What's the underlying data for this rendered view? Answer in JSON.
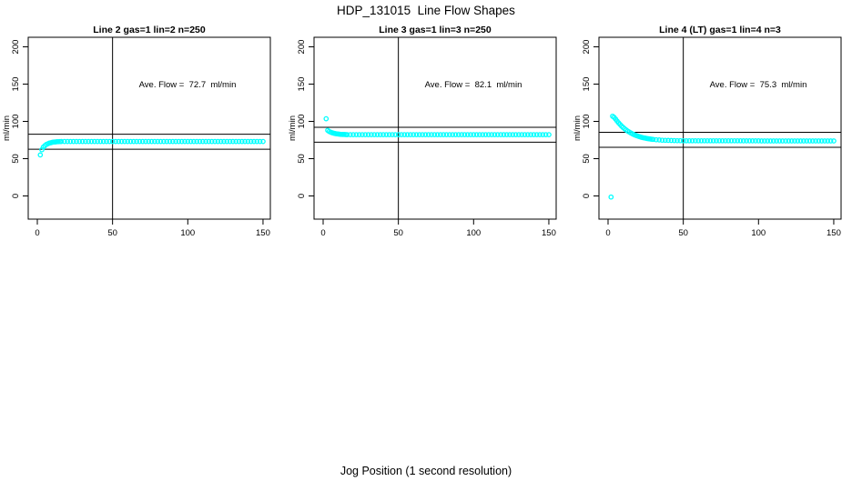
{
  "page": {
    "title": "HDP_131015  Line Flow Shapes",
    "x_axis_label": "Jog Position (1 second resolution)"
  },
  "colors": {
    "points": "#00ffff",
    "axis": "#000000",
    "background": "#ffffff"
  },
  "chart_data": [
    {
      "type": "scatter",
      "title": "Line 2 gas=1 lin=2 n=250",
      "annotation": "Ave. Flow =  72.7  ml/min",
      "ave_flow_ml_min": 72.7,
      "ylabel": "ml/min",
      "xlim": [
        0,
        150
      ],
      "ylim": [
        0,
        200
      ],
      "x_ticks": [
        0,
        50,
        100,
        150
      ],
      "y_ticks": [
        0,
        50,
        100,
        150,
        200
      ],
      "vline_x": 50,
      "hlines": [
        82.7,
        62.7
      ],
      "annotation_at": [
        100,
        150
      ],
      "points": [
        [
          2,
          55
        ],
        [
          3,
          62
        ],
        [
          4,
          65.5
        ],
        [
          5,
          67.5
        ],
        [
          6,
          69
        ],
        [
          7,
          70
        ],
        [
          8,
          70.8
        ],
        [
          9,
          71.4
        ],
        [
          10,
          71.9
        ],
        [
          11,
          72.3
        ],
        [
          12,
          72.5
        ],
        [
          13,
          72.7
        ],
        [
          14,
          72.8
        ],
        [
          15,
          72.9
        ],
        [
          16,
          73
        ],
        [
          18,
          73
        ],
        [
          20,
          73
        ],
        [
          22,
          73
        ],
        [
          24,
          73
        ],
        [
          26,
          73
        ],
        [
          28,
          73
        ],
        [
          30,
          73
        ],
        [
          32,
          73
        ],
        [
          34,
          73
        ],
        [
          36,
          73
        ],
        [
          38,
          73
        ],
        [
          40,
          73
        ],
        [
          42,
          73
        ],
        [
          44,
          73
        ],
        [
          46,
          73
        ],
        [
          48,
          73
        ],
        [
          50,
          73
        ],
        [
          52,
          73
        ],
        [
          54,
          73
        ],
        [
          56,
          73
        ],
        [
          58,
          73
        ],
        [
          60,
          73
        ],
        [
          62,
          73
        ],
        [
          64,
          73
        ],
        [
          66,
          73
        ],
        [
          68,
          73
        ],
        [
          70,
          73
        ],
        [
          72,
          73
        ],
        [
          74,
          73
        ],
        [
          76,
          73
        ],
        [
          78,
          73
        ],
        [
          80,
          73
        ],
        [
          82,
          73
        ],
        [
          84,
          73
        ],
        [
          86,
          73
        ],
        [
          88,
          73
        ],
        [
          90,
          73
        ],
        [
          92,
          73
        ],
        [
          94,
          73
        ],
        [
          96,
          73
        ],
        [
          98,
          73
        ],
        [
          100,
          73
        ],
        [
          102,
          73
        ],
        [
          104,
          73
        ],
        [
          106,
          73
        ],
        [
          108,
          73
        ],
        [
          110,
          73
        ],
        [
          112,
          73
        ],
        [
          114,
          73
        ],
        [
          116,
          73
        ],
        [
          118,
          73
        ],
        [
          120,
          73
        ],
        [
          122,
          73
        ],
        [
          124,
          73
        ],
        [
          126,
          73
        ],
        [
          128,
          73
        ],
        [
          130,
          73
        ],
        [
          132,
          73
        ],
        [
          134,
          73
        ],
        [
          136,
          73
        ],
        [
          138,
          73
        ],
        [
          140,
          73
        ],
        [
          142,
          73
        ],
        [
          144,
          73
        ],
        [
          146,
          73
        ],
        [
          148,
          73
        ],
        [
          150,
          73
        ]
      ]
    },
    {
      "type": "scatter",
      "title": "Line 3 gas=1 lin=3 n=250",
      "annotation": "Ave. Flow =  82.1  ml/min",
      "ave_flow_ml_min": 82.1,
      "ylabel": "ml/min",
      "xlim": [
        0,
        150
      ],
      "ylim": [
        0,
        200
      ],
      "x_ticks": [
        0,
        50,
        100,
        150
      ],
      "y_ticks": [
        0,
        50,
        100,
        150,
        200
      ],
      "vline_x": 50,
      "hlines": [
        92.1,
        72.1
      ],
      "annotation_at": [
        100,
        150
      ],
      "points": [
        [
          2,
          103.5
        ],
        [
          3,
          88
        ],
        [
          4,
          86.5
        ],
        [
          5,
          85.5
        ],
        [
          6,
          84.8
        ],
        [
          7,
          84.2
        ],
        [
          8,
          83.7
        ],
        [
          9,
          83.3
        ],
        [
          10,
          83
        ],
        [
          11,
          82.8
        ],
        [
          12,
          82.6
        ],
        [
          13,
          82.5
        ],
        [
          14,
          82.4
        ],
        [
          15,
          82.3
        ],
        [
          16,
          82.2
        ],
        [
          18,
          82.2
        ],
        [
          20,
          82.2
        ],
        [
          22,
          82.2
        ],
        [
          24,
          82.2
        ],
        [
          26,
          82.2
        ],
        [
          28,
          82.2
        ],
        [
          30,
          82.2
        ],
        [
          32,
          82.2
        ],
        [
          34,
          82.2
        ],
        [
          36,
          82.2
        ],
        [
          38,
          82.2
        ],
        [
          40,
          82.2
        ],
        [
          42,
          82.2
        ],
        [
          44,
          82.2
        ],
        [
          46,
          82.2
        ],
        [
          48,
          82.2
        ],
        [
          50,
          82.2
        ],
        [
          52,
          82.2
        ],
        [
          54,
          82.2
        ],
        [
          56,
          82.2
        ],
        [
          58,
          82.2
        ],
        [
          60,
          82.2
        ],
        [
          62,
          82.2
        ],
        [
          64,
          82.2
        ],
        [
          66,
          82.2
        ],
        [
          68,
          82.2
        ],
        [
          70,
          82.2
        ],
        [
          72,
          82.2
        ],
        [
          74,
          82.2
        ],
        [
          76,
          82.2
        ],
        [
          78,
          82.2
        ],
        [
          80,
          82.2
        ],
        [
          82,
          82.2
        ],
        [
          84,
          82.2
        ],
        [
          86,
          82.2
        ],
        [
          88,
          82.2
        ],
        [
          90,
          82.2
        ],
        [
          92,
          82.2
        ],
        [
          94,
          82.2
        ],
        [
          96,
          82.2
        ],
        [
          98,
          82.2
        ],
        [
          100,
          82.2
        ],
        [
          102,
          82.2
        ],
        [
          104,
          82.2
        ],
        [
          106,
          82.2
        ],
        [
          108,
          82.2
        ],
        [
          110,
          82.2
        ],
        [
          112,
          82.2
        ],
        [
          114,
          82.2
        ],
        [
          116,
          82.2
        ],
        [
          118,
          82.2
        ],
        [
          120,
          82.2
        ],
        [
          122,
          82.2
        ],
        [
          124,
          82.2
        ],
        [
          126,
          82.2
        ],
        [
          128,
          82.2
        ],
        [
          130,
          82.2
        ],
        [
          132,
          82.2
        ],
        [
          134,
          82.2
        ],
        [
          136,
          82.2
        ],
        [
          138,
          82.2
        ],
        [
          140,
          82.2
        ],
        [
          142,
          82.2
        ],
        [
          144,
          82.2
        ],
        [
          146,
          82.2
        ],
        [
          148,
          82.2
        ],
        [
          150,
          82.2
        ]
      ]
    },
    {
      "type": "scatter",
      "title": "Line 4 (LT) gas=1 lin=4 n=3",
      "annotation": "Ave. Flow =  75.3  ml/min",
      "ave_flow_ml_min": 75.3,
      "ylabel": "ml/min",
      "xlim": [
        0,
        150
      ],
      "ylim": [
        0,
        200
      ],
      "x_ticks": [
        0,
        50,
        100,
        150
      ],
      "y_ticks": [
        0,
        50,
        100,
        150,
        200
      ],
      "vline_x": 50,
      "hlines": [
        85.3,
        65.3
      ],
      "annotation_at": [
        100,
        150
      ],
      "points": [
        [
          2,
          -1.5
        ],
        [
          3,
          107
        ],
        [
          4,
          105.5
        ],
        [
          5,
          103
        ],
        [
          6,
          100.5
        ],
        [
          7,
          98
        ],
        [
          8,
          95.8
        ],
        [
          9,
          93.7
        ],
        [
          10,
          91.8
        ],
        [
          11,
          90.1
        ],
        [
          12,
          88.5
        ],
        [
          13,
          87.1
        ],
        [
          14,
          85.8
        ],
        [
          15,
          84.6
        ],
        [
          16,
          83.5
        ],
        [
          17,
          82.5
        ],
        [
          18,
          81.6
        ],
        [
          19,
          80.8
        ],
        [
          20,
          80.1
        ],
        [
          21,
          79.4
        ],
        [
          22,
          78.8
        ],
        [
          23,
          78.3
        ],
        [
          24,
          77.8
        ],
        [
          25,
          77.4
        ],
        [
          26,
          77
        ],
        [
          27,
          76.7
        ],
        [
          28,
          76.4
        ],
        [
          29,
          76.1
        ],
        [
          30,
          75.8
        ],
        [
          32,
          75.4
        ],
        [
          34,
          75.1
        ],
        [
          36,
          74.8
        ],
        [
          38,
          74.6
        ],
        [
          40,
          74.5
        ],
        [
          42,
          74.4
        ],
        [
          44,
          74.3
        ],
        [
          46,
          74.2
        ],
        [
          48,
          74.1
        ],
        [
          50,
          74
        ],
        [
          52,
          74
        ],
        [
          54,
          74
        ],
        [
          56,
          74
        ],
        [
          58,
          74
        ],
        [
          60,
          74
        ],
        [
          62,
          74
        ],
        [
          64,
          74
        ],
        [
          66,
          74
        ],
        [
          68,
          74
        ],
        [
          70,
          74
        ],
        [
          72,
          74
        ],
        [
          74,
          74
        ],
        [
          76,
          74
        ],
        [
          78,
          74
        ],
        [
          80,
          74
        ],
        [
          82,
          74
        ],
        [
          84,
          74
        ],
        [
          86,
          74
        ],
        [
          88,
          74
        ],
        [
          90,
          73.9
        ],
        [
          92,
          73.9
        ],
        [
          94,
          73.9
        ],
        [
          96,
          73.9
        ],
        [
          98,
          73.9
        ],
        [
          100,
          73.9
        ],
        [
          102,
          73.8
        ],
        [
          104,
          73.8
        ],
        [
          106,
          73.8
        ],
        [
          108,
          73.8
        ],
        [
          110,
          73.8
        ],
        [
          112,
          73.8
        ],
        [
          114,
          73.8
        ],
        [
          116,
          73.8
        ],
        [
          118,
          73.8
        ],
        [
          120,
          73.8
        ],
        [
          122,
          73.8
        ],
        [
          124,
          73.8
        ],
        [
          126,
          73.8
        ],
        [
          128,
          73.8
        ],
        [
          130,
          73.8
        ],
        [
          132,
          73.8
        ],
        [
          134,
          73.8
        ],
        [
          136,
          73.8
        ],
        [
          138,
          73.8
        ],
        [
          140,
          73.8
        ],
        [
          142,
          73.8
        ],
        [
          144,
          73.8
        ],
        [
          146,
          73.8
        ],
        [
          148,
          73.8
        ],
        [
          150,
          73.8
        ]
      ]
    }
  ]
}
